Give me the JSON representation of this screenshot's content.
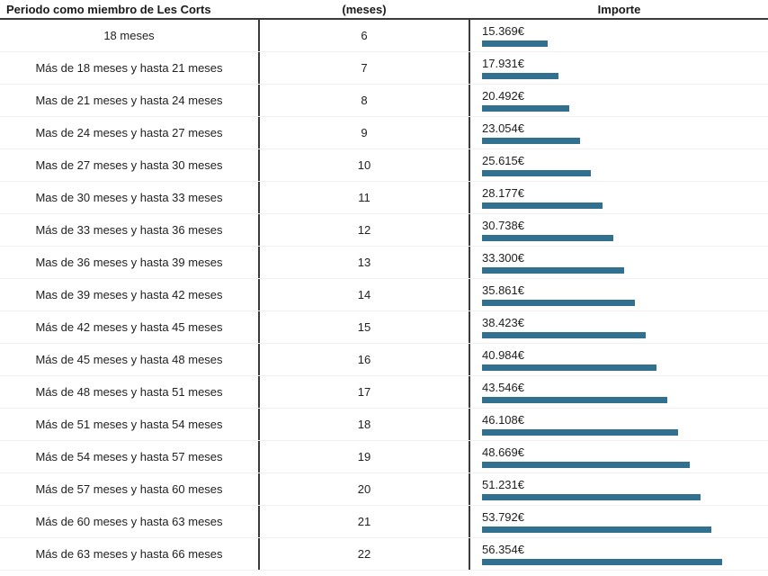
{
  "header": {
    "periodo": "Periodo como miembro de Les Corts",
    "meses": "(meses)",
    "importe": "Importe"
  },
  "colors": {
    "bar": "#31708E",
    "column_border": "#3a3a3a",
    "row_separator": "#f0f0f0",
    "text": "#212121"
  },
  "chart_data": {
    "type": "table",
    "columns": [
      "Periodo como miembro de Les Corts",
      "(meses)",
      "Importe"
    ],
    "bar_column": "Importe",
    "bar_value_max": 56354,
    "bar_color": "#31708E",
    "rows": [
      {
        "periodo": "18 meses",
        "meses": "6",
        "importe_label": "15.369€",
        "importe_value": 15369
      },
      {
        "periodo": "Más de 18 meses y hasta 21 meses",
        "meses": "7",
        "importe_label": "17.931€",
        "importe_value": 17931
      },
      {
        "periodo": "Mas de 21 meses y hasta 24 meses",
        "meses": "8",
        "importe_label": "20.492€",
        "importe_value": 20492
      },
      {
        "periodo": "Mas de 24 meses y hasta 27 meses",
        "meses": "9",
        "importe_label": "23.054€",
        "importe_value": 23054
      },
      {
        "periodo": "Mas de 27 meses y hasta 30 meses",
        "meses": "10",
        "importe_label": "25.615€",
        "importe_value": 25615
      },
      {
        "periodo": "Mas de 30 meses y hasta 33 meses",
        "meses": "11",
        "importe_label": "28.177€",
        "importe_value": 28177
      },
      {
        "periodo": "Más de 33 meses y hasta 36 meses",
        "meses": "12",
        "importe_label": "30.738€",
        "importe_value": 30738
      },
      {
        "periodo": "Mas de 36 meses y hasta 39 meses",
        "meses": "13",
        "importe_label": "33.300€",
        "importe_value": 33300
      },
      {
        "periodo": "Mas de 39 meses y hasta 42 meses",
        "meses": "14",
        "importe_label": "35.861€",
        "importe_value": 35861
      },
      {
        "periodo": "Más de 42 meses y hasta 45 meses",
        "meses": "15",
        "importe_label": "38.423€",
        "importe_value": 38423
      },
      {
        "periodo": "Más de 45 meses y hasta 48 meses",
        "meses": "16",
        "importe_label": "40.984€",
        "importe_value": 40984
      },
      {
        "periodo": "Más de 48 meses y hasta 51 meses",
        "meses": "17",
        "importe_label": "43.546€",
        "importe_value": 43546
      },
      {
        "periodo": "Más de 51 meses y hasta 54 meses",
        "meses": "18",
        "importe_label": "46.108€",
        "importe_value": 46108
      },
      {
        "periodo": "Más de 54 meses y hasta 57 meses",
        "meses": "19",
        "importe_label": "48.669€",
        "importe_value": 48669
      },
      {
        "periodo": "Más de 57 meses y hasta 60 meses",
        "meses": "20",
        "importe_label": "51.231€",
        "importe_value": 51231
      },
      {
        "periodo": "Más de 60 meses y hasta 63 meses",
        "meses": "21",
        "importe_label": "53.792€",
        "importe_value": 53792
      },
      {
        "periodo": "Más de 63 meses y hasta 66 meses",
        "meses": "22",
        "importe_label": "56.354€",
        "importe_value": 56354
      }
    ]
  }
}
